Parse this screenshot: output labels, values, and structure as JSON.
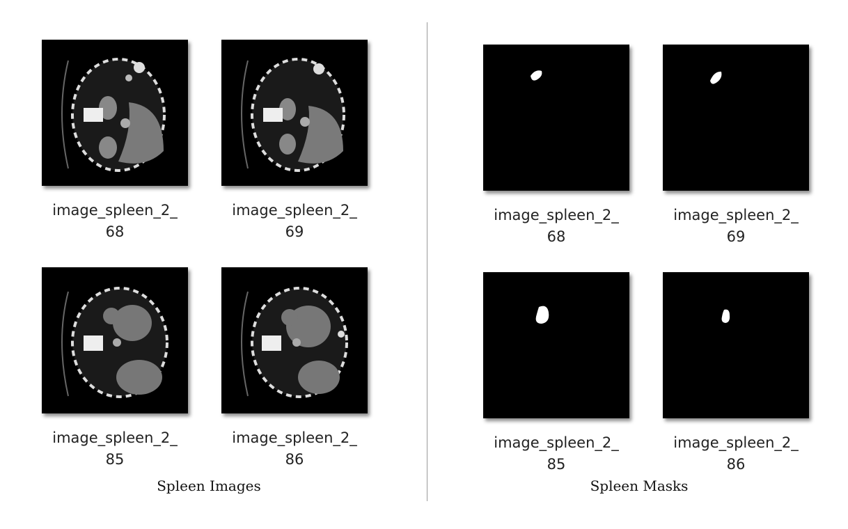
{
  "panels": [
    {
      "caption": "Spleen Images",
      "tiles": [
        {
          "name_line1": "image_spleen_2_",
          "name_line2": "68"
        },
        {
          "name_line1": "image_spleen_2_",
          "name_line2": "69"
        },
        {
          "name_line1": "image_spleen_2_",
          "name_line2": "85"
        },
        {
          "name_line1": "image_spleen_2_",
          "name_line2": "86"
        }
      ]
    },
    {
      "caption": "Spleen Masks",
      "tiles": [
        {
          "name_line1": "image_spleen_2_",
          "name_line2": "68"
        },
        {
          "name_line1": "image_spleen_2_",
          "name_line2": "69"
        },
        {
          "name_line1": "image_spleen_2_",
          "name_line2": "85"
        },
        {
          "name_line1": "image_spleen_2_",
          "name_line2": "86"
        }
      ]
    }
  ]
}
